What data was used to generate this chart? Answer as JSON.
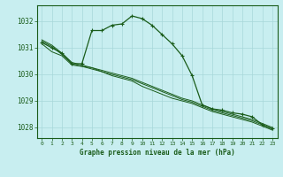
{
  "title": "Graphe pression niveau de la mer (hPa)",
  "bg_color": "#c8eef0",
  "grid_color": "#a8d8da",
  "line_color": "#1a5c1a",
  "x_labels": [
    "0",
    "1",
    "2",
    "3",
    "4",
    "5",
    "6",
    "7",
    "8",
    "9",
    "10",
    "11",
    "12",
    "13",
    "14",
    "15",
    "16",
    "17",
    "18",
    "19",
    "20",
    "21",
    "22",
    "23"
  ],
  "ylim": [
    1027.6,
    1032.6
  ],
  "yticks": [
    1028,
    1029,
    1030,
    1031,
    1032
  ],
  "series_plain": [
    [
      1031.15,
      1030.85,
      1030.7,
      1030.35,
      1030.3,
      1030.25,
      1030.1,
      1029.95,
      1029.85,
      1029.75,
      1029.55,
      1029.4,
      1029.25,
      1029.1,
      1029.0,
      1028.9,
      1028.75,
      1028.6,
      1028.5,
      1028.4,
      1028.3,
      1028.2,
      1028.05,
      1027.9
    ],
    [
      1031.25,
      1031.05,
      1030.75,
      1030.4,
      1030.3,
      1030.2,
      1030.1,
      1030.0,
      1029.9,
      1029.8,
      1029.65,
      1029.5,
      1029.35,
      1029.2,
      1029.05,
      1028.95,
      1028.8,
      1028.65,
      1028.55,
      1028.45,
      1028.35,
      1028.25,
      1028.1,
      1027.95
    ],
    [
      1031.3,
      1031.1,
      1030.8,
      1030.45,
      1030.35,
      1030.25,
      1030.15,
      1030.05,
      1029.95,
      1029.85,
      1029.7,
      1029.55,
      1029.4,
      1029.25,
      1029.1,
      1029.0,
      1028.85,
      1028.7,
      1028.6,
      1028.5,
      1028.4,
      1028.3,
      1028.15,
      1028.0
    ]
  ],
  "series_main": [
    1031.2,
    1031.0,
    1030.8,
    1030.4,
    1030.4,
    1031.65,
    1031.65,
    1031.85,
    1031.9,
    1032.2,
    1032.1,
    1031.85,
    1031.5,
    1031.15,
    1030.7,
    1029.95,
    1028.85,
    1028.7,
    1028.65,
    1028.55,
    1028.5,
    1028.4,
    1028.1,
    1027.95
  ]
}
